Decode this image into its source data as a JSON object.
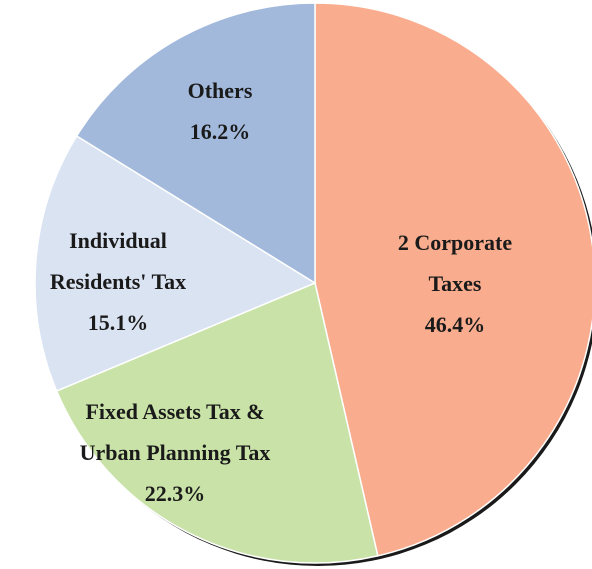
{
  "chart_data": {
    "type": "pie",
    "categories": [
      [
        "2 Corporate",
        "Taxes"
      ],
      [
        "Fixed Assets Tax &",
        "Urban Planning Tax"
      ],
      [
        "Individual",
        "Residents' Tax"
      ],
      [
        "Others"
      ]
    ],
    "values": [
      46.4,
      22.3,
      15.1,
      16.2
    ],
    "value_labels": [
      "46.4%",
      "22.3%",
      "15.1%",
      "16.2%"
    ],
    "colors": [
      "#f9ad8e",
      "#c9e2a8",
      "#dae3f2",
      "#a2b9dc"
    ]
  }
}
